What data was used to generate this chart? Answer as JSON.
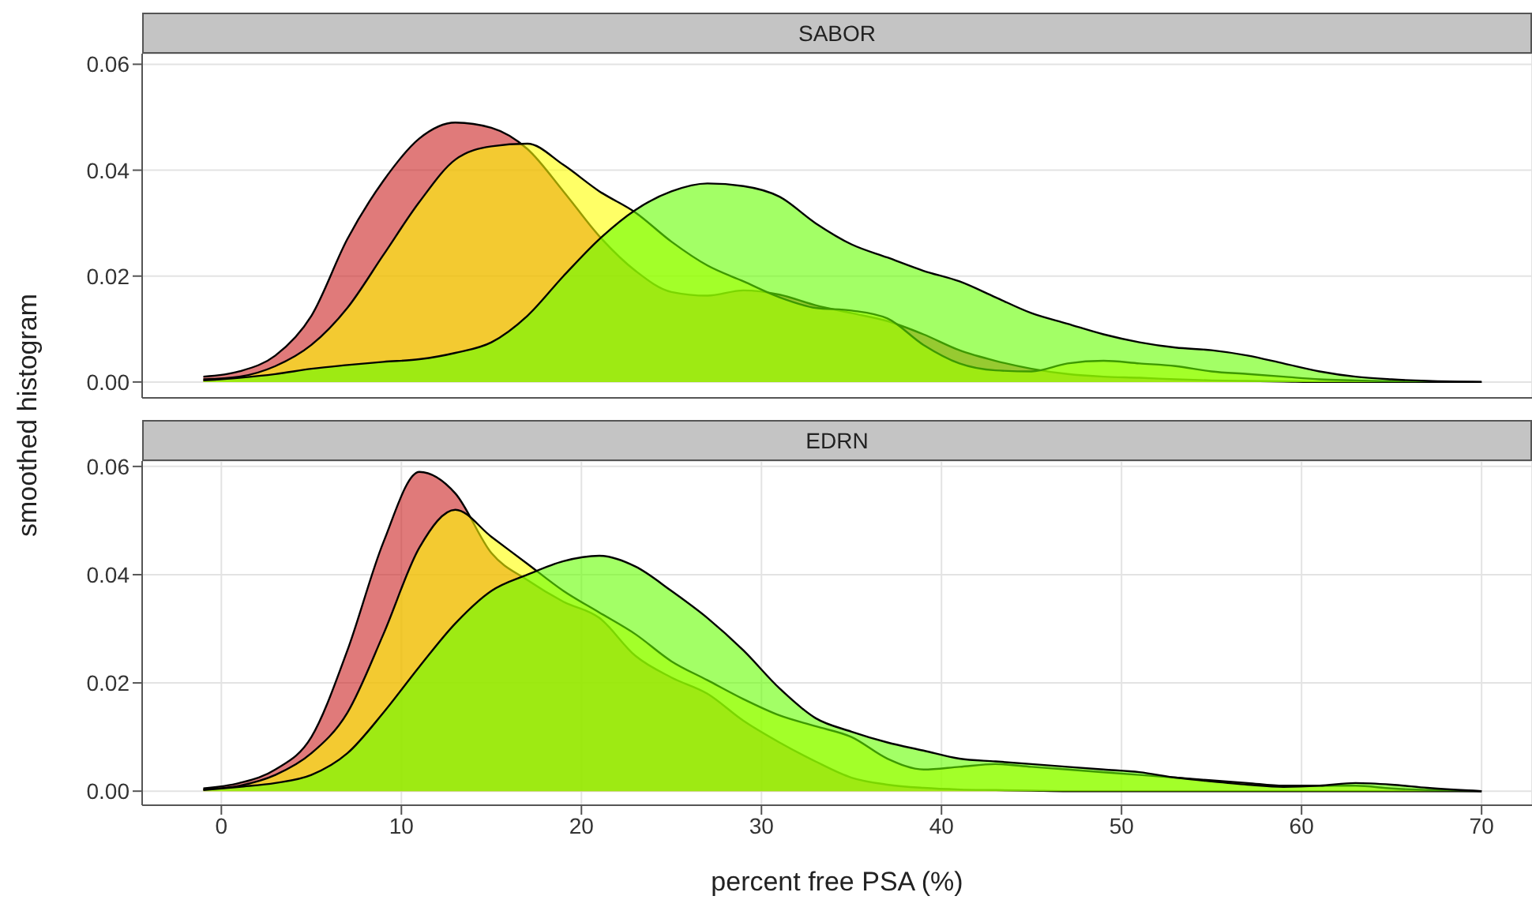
{
  "chart_data": [
    {
      "type": "area",
      "title": "SABOR",
      "ylabel": "smoothed histogram",
      "grid": true,
      "tick_labels": "y",
      "x": [
        -1,
        1,
        3,
        5,
        7,
        9,
        11,
        13,
        15,
        17,
        19,
        21,
        23,
        25,
        27,
        29,
        31,
        33,
        35,
        37,
        39,
        41,
        43,
        45,
        47,
        49,
        51,
        53,
        55,
        57,
        59,
        61,
        63,
        65,
        67,
        70
      ],
      "xlim": [
        -4.4,
        72.8
      ],
      "xticks": [
        0,
        10,
        20,
        30,
        40,
        50,
        60,
        70
      ],
      "ylim": [
        -0.003,
        0.062
      ],
      "yticks": [
        {
          "value": 0,
          "label": "0.00"
        },
        {
          "value": 0.02,
          "label": "0.02"
        },
        {
          "value": 0.04,
          "label": "0.04"
        },
        {
          "value": 0.06,
          "label": "0.06"
        }
      ],
      "series": [
        {
          "color": "#cc2222",
          "values": [
            0.001,
            0.002,
            0.005,
            0.0125,
            0.027,
            0.038,
            0.046,
            0.049,
            0.048,
            0.044,
            0.036,
            0.0275,
            0.021,
            0.017,
            0.0163,
            0.0173,
            0.0165,
            0.0145,
            0.013,
            0.0115,
            0.009,
            0.006,
            0.004,
            0.0025,
            0.0015,
            0.001,
            0.0008,
            0.0005,
            0.0003,
            0.0002,
            0.0001,
            0,
            0,
            0,
            0,
            0
          ]
        },
        {
          "color": "#ffff00",
          "values": [
            0.0005,
            0.001,
            0.003,
            0.007,
            0.014,
            0.024,
            0.034,
            0.042,
            0.0445,
            0.045,
            0.041,
            0.036,
            0.032,
            0.0265,
            0.022,
            0.019,
            0.016,
            0.014,
            0.0135,
            0.012,
            0.007,
            0.0035,
            0.0022,
            0.002,
            0.0035,
            0.004,
            0.0035,
            0.003,
            0.002,
            0.0015,
            0.001,
            0.0005,
            0.0003,
            0.0001,
            0,
            0
          ]
        },
        {
          "color": "#66ff00",
          "values": [
            0.0003,
            0.0008,
            0.0015,
            0.0025,
            0.0032,
            0.0038,
            0.0043,
            0.0055,
            0.0075,
            0.0125,
            0.02,
            0.027,
            0.0325,
            0.036,
            0.0375,
            0.037,
            0.035,
            0.03,
            0.026,
            0.0235,
            0.021,
            0.019,
            0.016,
            0.013,
            0.011,
            0.009,
            0.0075,
            0.0065,
            0.006,
            0.005,
            0.0035,
            0.002,
            0.001,
            0.0005,
            0.0002,
            0
          ]
        }
      ]
    },
    {
      "type": "area",
      "title": "EDRN",
      "xlabel": "percent free PSA (%)",
      "grid": true,
      "x": [
        -1,
        1,
        3,
        5,
        7,
        9,
        11,
        13,
        15,
        17,
        19,
        21,
        23,
        25,
        27,
        29,
        31,
        33,
        35,
        37,
        39,
        41,
        43,
        45,
        47,
        49,
        51,
        53,
        55,
        57,
        59,
        61,
        63,
        65,
        67,
        70
      ],
      "xlim": [
        -4.4,
        72.8
      ],
      "xticks": [
        0,
        10,
        20,
        30,
        40,
        50,
        60,
        70
      ],
      "ylim": [
        -0.0026,
        0.061
      ],
      "yticks": [
        {
          "value": 0,
          "label": "0.00"
        },
        {
          "value": 0.02,
          "label": "0.02"
        },
        {
          "value": 0.04,
          "label": "0.04"
        },
        {
          "value": 0.06,
          "label": "0.06"
        }
      ],
      "series": [
        {
          "color": "#cc2222",
          "values": [
            0.0005,
            0.0015,
            0.004,
            0.01,
            0.026,
            0.046,
            0.059,
            0.055,
            0.044,
            0.039,
            0.035,
            0.032,
            0.025,
            0.021,
            0.018,
            0.013,
            0.009,
            0.0055,
            0.0025,
            0.0012,
            0.0006,
            0.0003,
            0.0002,
            0.0001,
            0,
            0,
            0,
            0,
            0,
            0,
            0,
            0,
            0,
            0,
            0,
            0
          ]
        },
        {
          "color": "#ffff00",
          "values": [
            0.0003,
            0.001,
            0.003,
            0.007,
            0.0145,
            0.029,
            0.045,
            0.052,
            0.047,
            0.042,
            0.037,
            0.033,
            0.029,
            0.024,
            0.0205,
            0.017,
            0.014,
            0.012,
            0.01,
            0.006,
            0.004,
            0.0045,
            0.005,
            0.0045,
            0.004,
            0.0035,
            0.003,
            0.0025,
            0.002,
            0.0015,
            0.001,
            0.001,
            0.001,
            0.0005,
            0.0002,
            0
          ]
        },
        {
          "color": "#66ff00",
          "values": [
            0.0002,
            0.0008,
            0.0015,
            0.003,
            0.007,
            0.0145,
            0.023,
            0.031,
            0.037,
            0.04,
            0.0425,
            0.0435,
            0.0415,
            0.037,
            0.032,
            0.026,
            0.019,
            0.0135,
            0.011,
            0.009,
            0.0075,
            0.006,
            0.0055,
            0.005,
            0.0045,
            0.004,
            0.0035,
            0.0025,
            0.0018,
            0.0012,
            0.0008,
            0.001,
            0.0015,
            0.0012,
            0.0006,
            0
          ]
        }
      ]
    }
  ]
}
